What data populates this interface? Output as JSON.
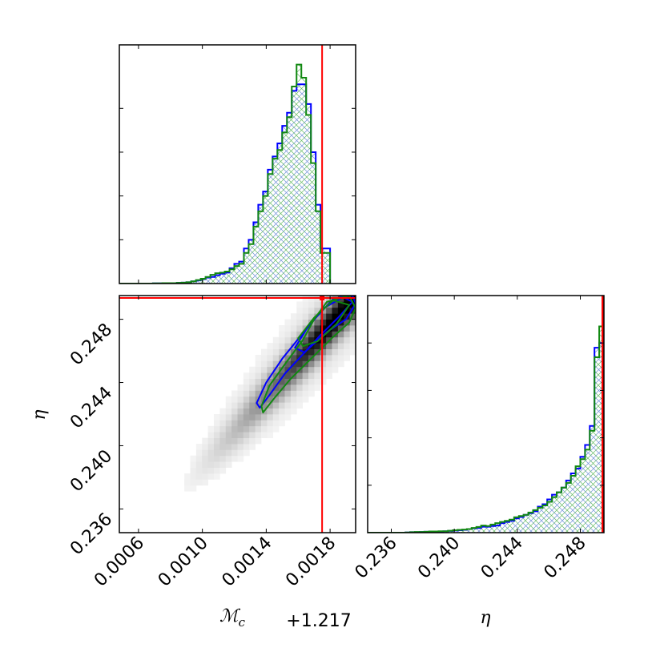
{
  "chart_data": {
    "type": "corner",
    "parameters": [
      {
        "symbol": "ℳ",
        "subscript": "c",
        "offset_label": "+1.217",
        "range": [
          0.00048,
          0.00196
        ],
        "ticks": [
          "0.0006",
          "0.0010",
          "0.0014",
          "0.0018"
        ],
        "tick_values": [
          0.0006,
          0.001,
          0.0014,
          0.0018
        ],
        "injected_value": 0.00175
      },
      {
        "symbol": "η",
        "range": [
          0.2345,
          0.2495
        ],
        "ticks": [
          "0.236",
          "0.240",
          "0.244",
          "0.248"
        ],
        "tick_values": [
          0.236,
          0.24,
          0.244,
          0.248
        ],
        "injected_value": 0.2495
      }
    ],
    "marker_color": "#ff0000",
    "series": [
      {
        "color": "#0000ff",
        "hatch_color": "#6f8fd8"
      },
      {
        "color": "#118811",
        "hatch_color": "#66bb66"
      }
    ],
    "marginal_mc": {
      "x_edges_start": 0.00048,
      "bin_width": 3e-05,
      "blue": [
        0,
        0,
        0,
        0,
        0,
        0,
        0,
        0.001,
        0.001,
        0.002,
        0.002,
        0.002,
        0.003,
        0.004,
        0.006,
        0.01,
        0.014,
        0.02,
        0.027,
        0.03,
        0.038,
        0.045,
        0.05,
        0.07,
        0.09,
        0.1,
        0.16,
        0.2,
        0.28,
        0.36,
        0.42,
        0.52,
        0.58,
        0.64,
        0.72,
        0.78,
        0.88,
        0.91,
        0.91,
        0.82,
        0.6,
        0.36,
        0.16,
        0.16
      ],
      "green": [
        0,
        0,
        0,
        0,
        0,
        0,
        0,
        0.001,
        0.001,
        0.002,
        0.002,
        0.002,
        0.003,
        0.004,
        0.006,
        0.01,
        0.016,
        0.022,
        0.03,
        0.04,
        0.047,
        0.05,
        0.055,
        0.065,
        0.08,
        0.09,
        0.14,
        0.18,
        0.26,
        0.33,
        0.4,
        0.5,
        0.57,
        0.61,
        0.69,
        0.76,
        0.9,
        1.0,
        0.94,
        0.77,
        0.55,
        0.33,
        0.14,
        0.14
      ]
    },
    "marginal_eta": {
      "x_edges_start": 0.2345,
      "bin_width": 0.0003,
      "blue": [
        0,
        0,
        0,
        0,
        0,
        0,
        0,
        0,
        0.001,
        0.002,
        0.002,
        0.003,
        0.004,
        0.004,
        0.005,
        0.005,
        0.006,
        0.007,
        0.009,
        0.01,
        0.012,
        0.015,
        0.018,
        0.02,
        0.025,
        0.025,
        0.028,
        0.03,
        0.04,
        0.045,
        0.05,
        0.06,
        0.066,
        0.075,
        0.082,
        0.09,
        0.11,
        0.12,
        0.14,
        0.16,
        0.17,
        0.19,
        0.22,
        0.25,
        0.27,
        0.32,
        0.37,
        0.45,
        0.78,
        0.8
      ],
      "green": [
        0,
        0,
        0,
        0,
        0,
        0,
        0,
        0,
        0.001,
        0.002,
        0.003,
        0.003,
        0.004,
        0.005,
        0.005,
        0.006,
        0.006,
        0.008,
        0.01,
        0.012,
        0.013,
        0.015,
        0.02,
        0.024,
        0.03,
        0.028,
        0.034,
        0.04,
        0.045,
        0.05,
        0.055,
        0.065,
        0.07,
        0.075,
        0.085,
        0.095,
        0.105,
        0.115,
        0.13,
        0.15,
        0.17,
        0.19,
        0.21,
        0.24,
        0.28,
        0.31,
        0.35,
        0.43,
        0.74,
        0.87
      ]
    },
    "joint_density": {
      "bins": 40,
      "center_a": [
        0.00135,
        0.2425
      ],
      "center_b": [
        0.00192,
        0.249
      ],
      "scatter": [
        0.0003,
        0.002
      ]
    },
    "contours": [
      {
        "series": 0,
        "points": [
          [
            0.00134,
            0.2427
          ],
          [
            0.0014,
            0.244
          ],
          [
            0.0015,
            0.2455
          ],
          [
            0.00162,
            0.247
          ],
          [
            0.00172,
            0.2482
          ],
          [
            0.00182,
            0.2493
          ],
          [
            0.00194,
            0.2495
          ],
          [
            0.00196,
            0.249
          ],
          [
            0.0019,
            0.248
          ],
          [
            0.00178,
            0.2472
          ],
          [
            0.00165,
            0.246
          ],
          [
            0.00152,
            0.2446
          ],
          [
            0.00142,
            0.2432
          ],
          [
            0.00136,
            0.2424
          ]
        ]
      },
      {
        "series": 0,
        "points": [
          [
            0.00158,
            0.2462
          ],
          [
            0.00166,
            0.2475
          ],
          [
            0.00176,
            0.2487
          ],
          [
            0.00188,
            0.2494
          ],
          [
            0.00194,
            0.2491
          ],
          [
            0.00185,
            0.2481
          ],
          [
            0.00174,
            0.247
          ],
          [
            0.00164,
            0.2459
          ]
        ]
      },
      {
        "series": 1,
        "points": [
          [
            0.00137,
            0.2425
          ],
          [
            0.00142,
            0.2438
          ],
          [
            0.00152,
            0.2452
          ],
          [
            0.00163,
            0.2467
          ],
          [
            0.0017,
            0.248
          ],
          [
            0.00178,
            0.2491
          ],
          [
            0.00192,
            0.2495
          ],
          [
            0.00196,
            0.2487
          ],
          [
            0.00192,
            0.2478
          ],
          [
            0.00181,
            0.2468
          ],
          [
            0.00168,
            0.2455
          ],
          [
            0.00155,
            0.2442
          ],
          [
            0.00145,
            0.243
          ],
          [
            0.00138,
            0.2421
          ]
        ]
      },
      {
        "series": 1,
        "points": [
          [
            0.0016,
            0.2468
          ],
          [
            0.0017,
            0.2481
          ],
          [
            0.00182,
            0.2492
          ],
          [
            0.00192,
            0.2489
          ],
          [
            0.00184,
            0.2477
          ],
          [
            0.00172,
            0.2466
          ],
          [
            0.00163,
            0.2463
          ]
        ]
      }
    ]
  }
}
